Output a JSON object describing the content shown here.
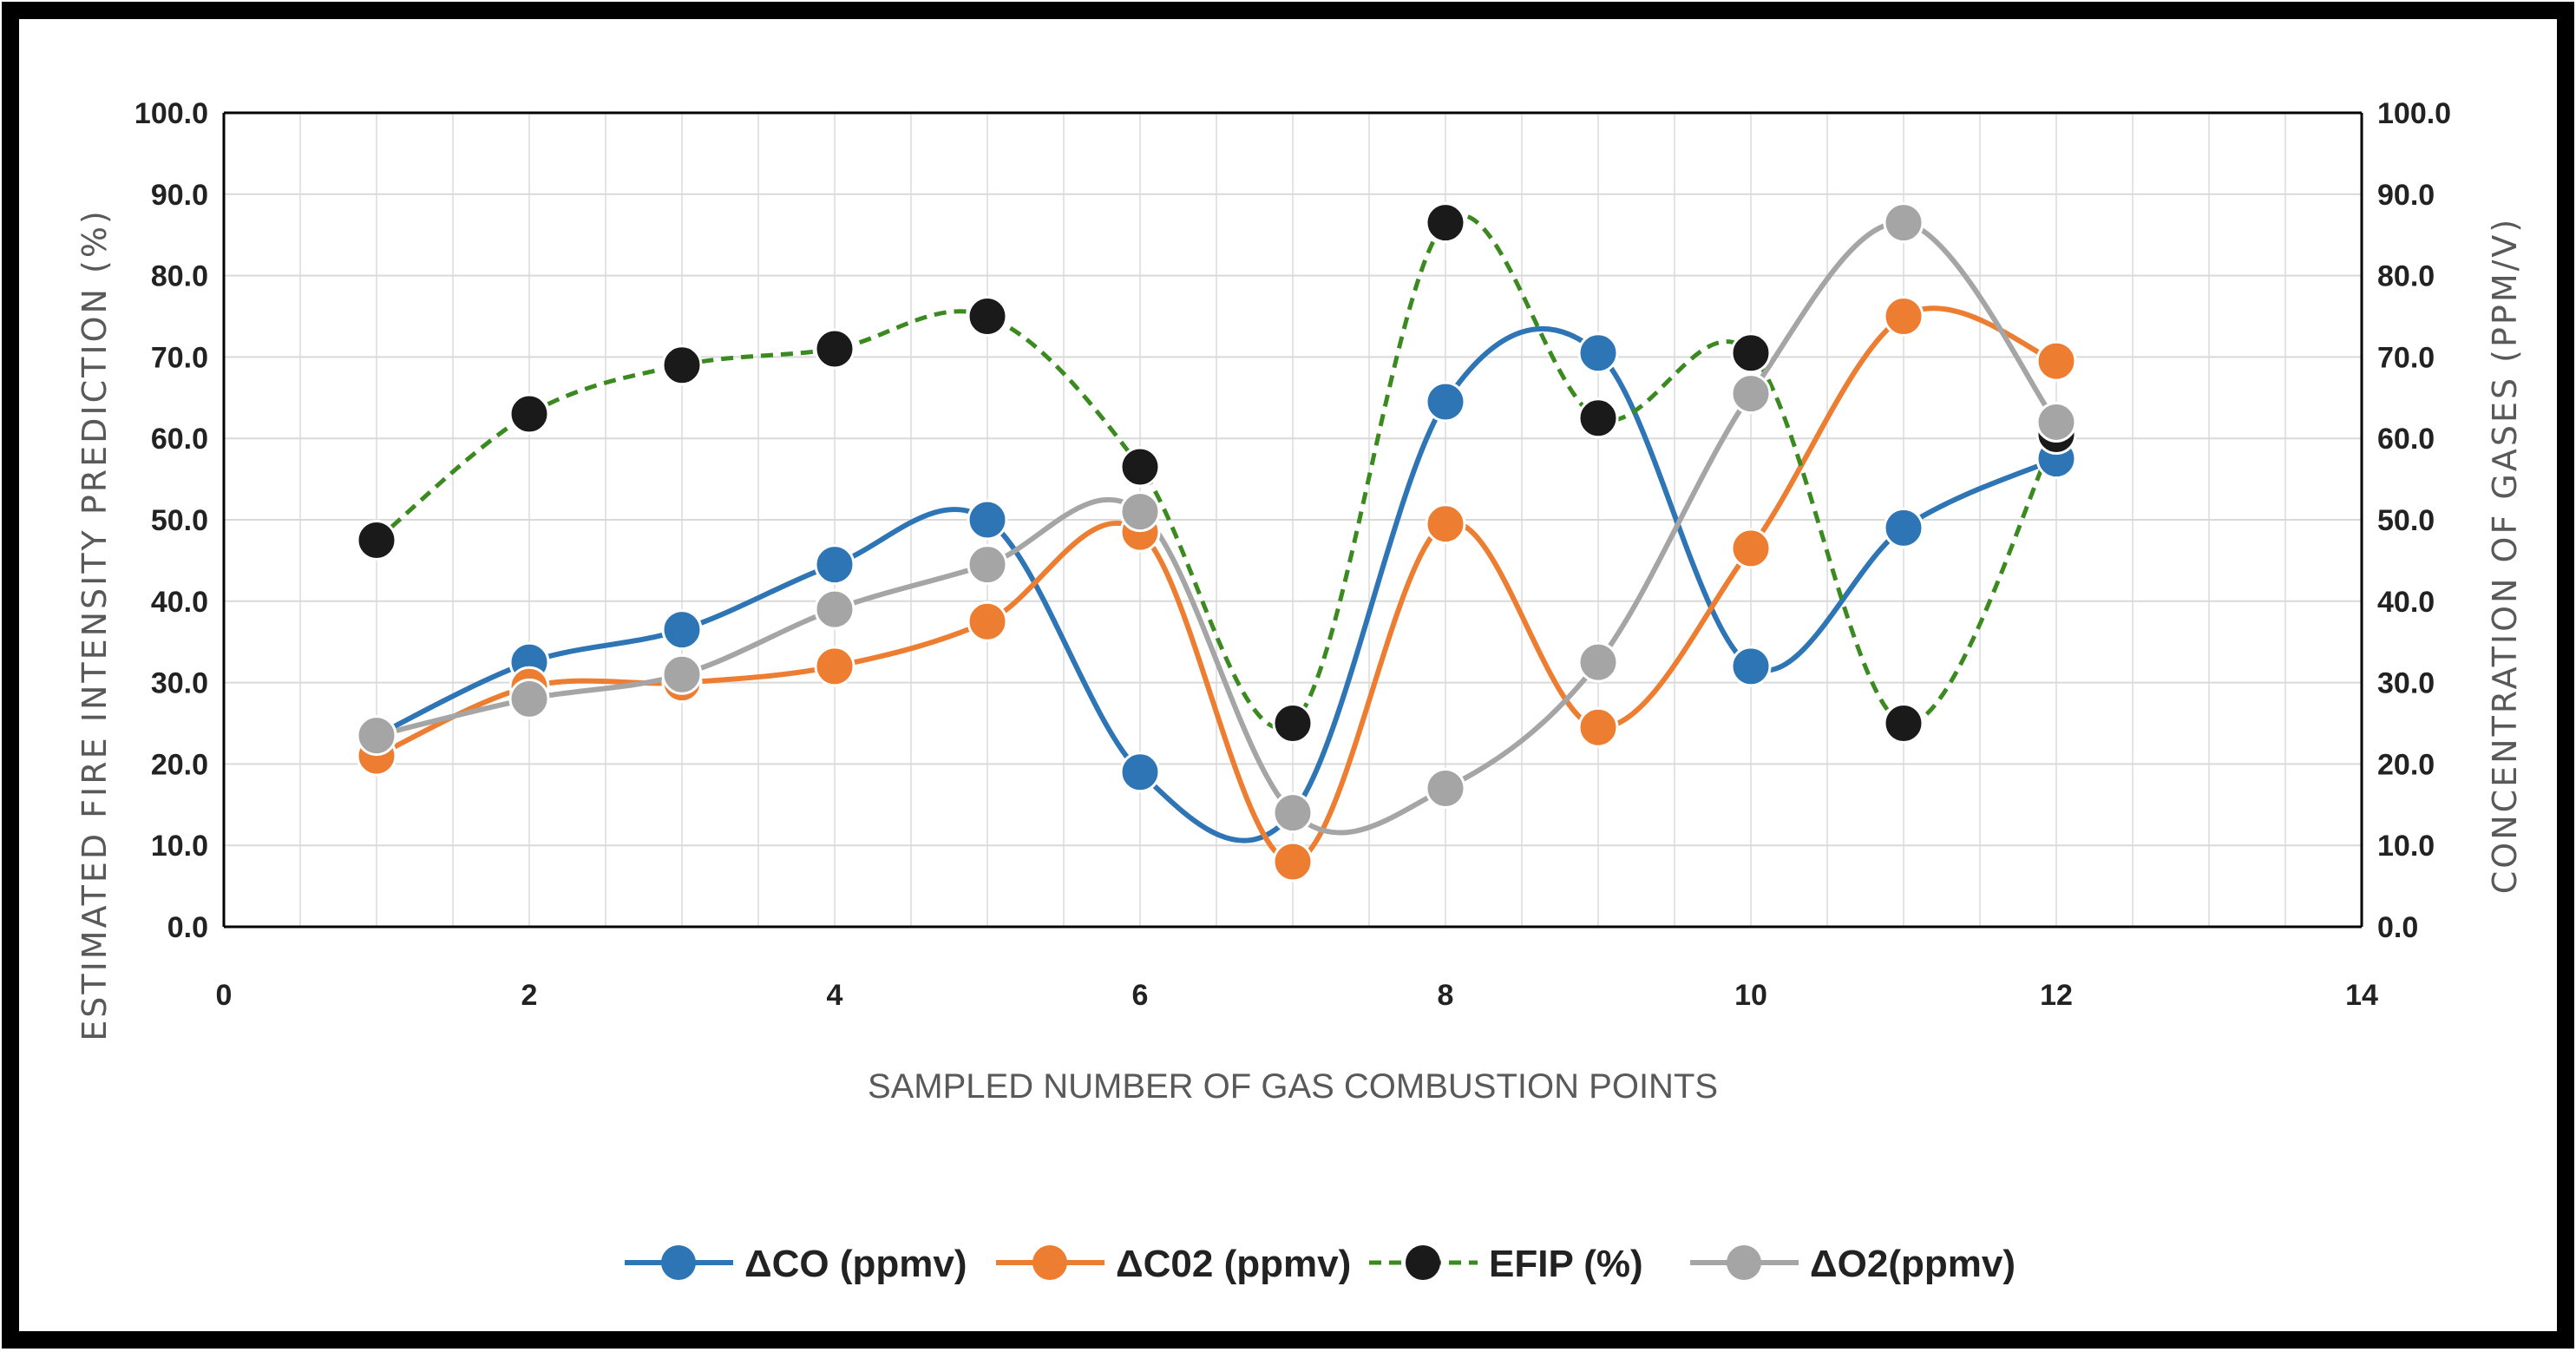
{
  "chart_data": {
    "type": "line",
    "title": "",
    "x": [
      1,
      2,
      3,
      4,
      5,
      6,
      7,
      8,
      9,
      10,
      11,
      12
    ],
    "x_ticks": [
      "0",
      "2",
      "4",
      "6",
      "8",
      "10",
      "12",
      "14"
    ],
    "x_tick_values": [
      0,
      2,
      4,
      6,
      8,
      10,
      12,
      14
    ],
    "xlim": [
      0,
      14
    ],
    "xlabel": "SAMPLED NUMBER OF GAS COMBUSTION POINTS",
    "ylabel_left": "ESTIMATED FIRE INTENSITY PREDICTION (%)",
    "ylabel_right": "CONCENTRATION OF GASES (PPM/V)",
    "ylim": [
      0,
      100
    ],
    "y_ticks": [
      "0.0",
      "10.0",
      "20.0",
      "30.0",
      "40.0",
      "50.0",
      "60.0",
      "70.0",
      "80.0",
      "90.0",
      "100.0"
    ],
    "y_tick_values": [
      0,
      10,
      20,
      30,
      40,
      50,
      60,
      70,
      80,
      90,
      100
    ],
    "grid": true,
    "smoothed": true,
    "legend_position": "bottom",
    "series": [
      {
        "name": "ΔCO (ppmv)",
        "axis": "right",
        "style": "solid",
        "color": "#2E75B6",
        "values": [
          23.5,
          32.5,
          36.5,
          44.5,
          50.0,
          19.0,
          14.0,
          64.5,
          70.5,
          32.0,
          49.0,
          57.5
        ]
      },
      {
        "name": "ΔC02 (ppmv)",
        "axis": "right",
        "style": "solid",
        "color": "#ED7D31",
        "values": [
          21.0,
          29.5,
          30.0,
          32.0,
          37.5,
          48.5,
          8.0,
          49.5,
          24.5,
          46.5,
          75.0,
          69.5
        ]
      },
      {
        "name": "EFIP (%)",
        "axis": "left",
        "style": "dashed",
        "color": "#3A8A1F",
        "marker_color": "#1A1A1A",
        "values": [
          47.5,
          63.0,
          69.0,
          71.0,
          75.0,
          56.5,
          25.0,
          86.5,
          62.5,
          70.5,
          25.0,
          60.5
        ]
      },
      {
        "name": "ΔO2(ppmv)",
        "axis": "right",
        "style": "solid",
        "color": "#A5A5A5",
        "values": [
          23.5,
          28.0,
          31.0,
          39.0,
          44.5,
          51.0,
          14.0,
          17.0,
          32.5,
          65.5,
          86.5,
          62.0
        ]
      }
    ]
  }
}
